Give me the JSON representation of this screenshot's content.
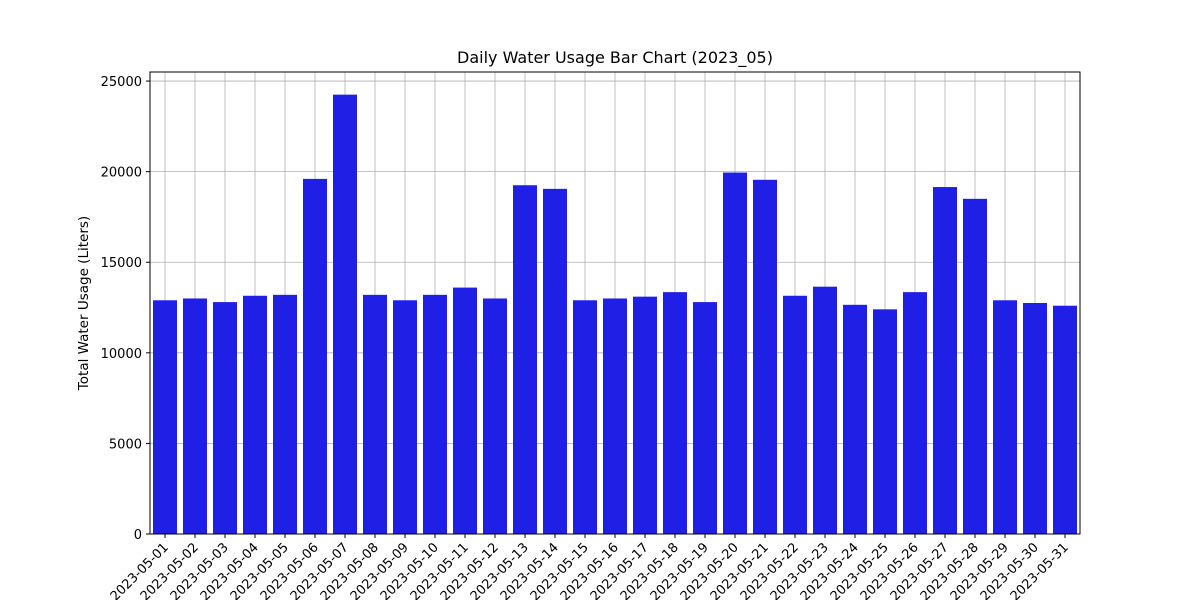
{
  "chart_data": {
    "type": "bar",
    "title": "Daily Water Usage Bar Chart (2023_05)",
    "xlabel": "",
    "ylabel": "Total Water Usage (Liters)",
    "ylim": [
      0,
      25500
    ],
    "yticks": [
      0,
      5000,
      10000,
      15000,
      20000,
      25000
    ],
    "grid": true,
    "bar_color": "#1f1fe6",
    "categories": [
      "2023-05-01",
      "2023-05-02",
      "2023-05-03",
      "2023-05-04",
      "2023-05-05",
      "2023-05-06",
      "2023-05-07",
      "2023-05-08",
      "2023-05-09",
      "2023-05-10",
      "2023-05-11",
      "2023-05-12",
      "2023-05-13",
      "2023-05-14",
      "2023-05-15",
      "2023-05-16",
      "2023-05-17",
      "2023-05-18",
      "2023-05-19",
      "2023-05-20",
      "2023-05-21",
      "2023-05-22",
      "2023-05-23",
      "2023-05-24",
      "2023-05-25",
      "2023-05-26",
      "2023-05-27",
      "2023-05-28",
      "2023-05-29",
      "2023-05-30",
      "2023-05-31"
    ],
    "values": [
      12900,
      13000,
      12800,
      13150,
      13200,
      19600,
      24250,
      13200,
      12900,
      13200,
      13600,
      13000,
      19250,
      19050,
      12900,
      13000,
      13100,
      13350,
      12800,
      19950,
      19550,
      13150,
      13650,
      12650,
      12400,
      13350,
      19150,
      18500,
      12900,
      12750,
      12600
    ]
  }
}
